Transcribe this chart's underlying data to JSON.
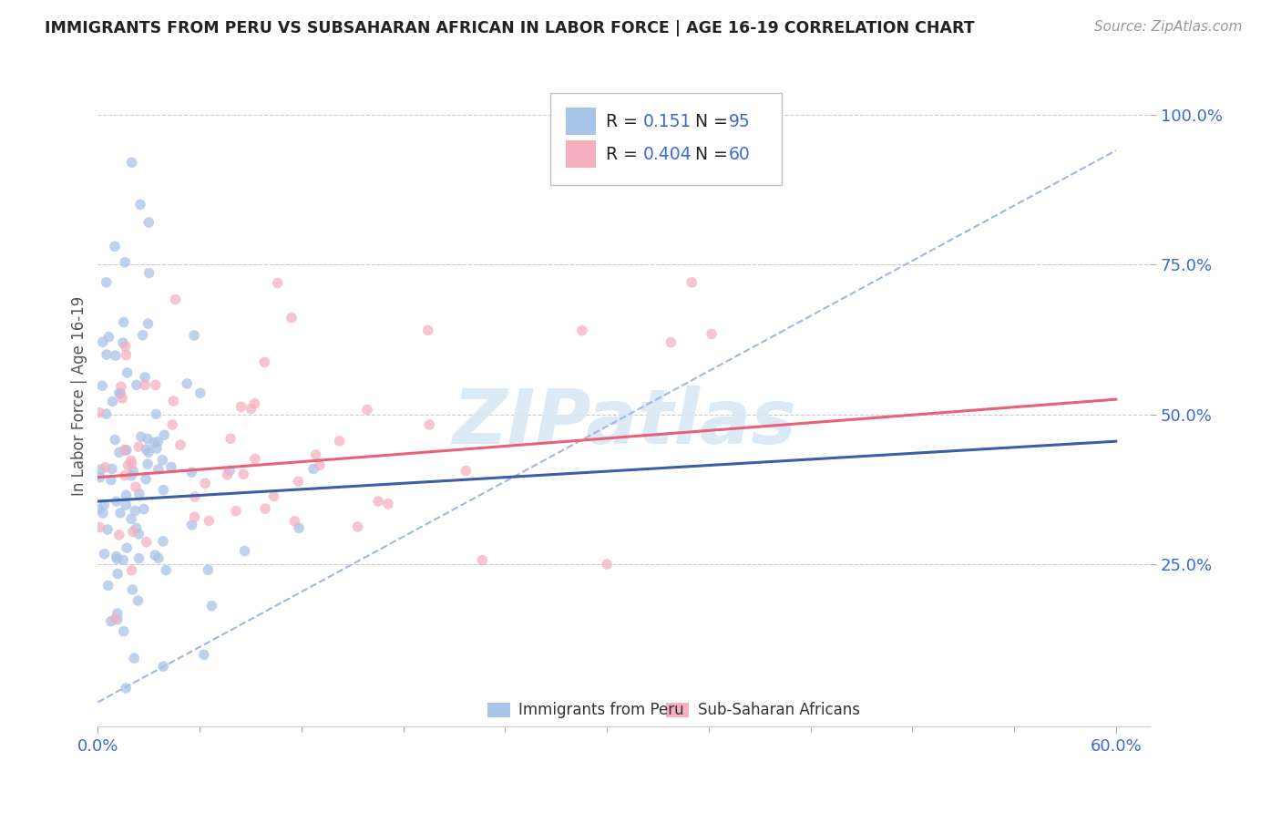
{
  "title": "IMMIGRANTS FROM PERU VS SUBSAHARAN AFRICAN IN LABOR FORCE | AGE 16-19 CORRELATION CHART",
  "source_text": "Source: ZipAtlas.com",
  "ylabel": "In Labor Force | Age 16-19",
  "xlim": [
    0.0,
    0.62
  ],
  "ylim": [
    -0.02,
    1.08
  ],
  "ytick_values": [
    0.25,
    0.5,
    0.75,
    1.0
  ],
  "ytick_labels": [
    "25.0%",
    "50.0%",
    "75.0%",
    "100.0%"
  ],
  "xtick_values": [
    0.0,
    0.6
  ],
  "xtick_labels": [
    "0.0%",
    "60.0%"
  ],
  "watermark": "ZIPatlas",
  "color_peru": "#a8c4e8",
  "color_africa": "#f5b0c0",
  "color_peru_line": "#3a5fa8",
  "color_africa_line": "#e8607a",
  "color_dashed": "#a0b8e0",
  "background_color": "#ffffff",
  "legend_r1_label": "R = ",
  "legend_r1_val": "0.151",
  "legend_n1_label": "N = ",
  "legend_n1_val": "95",
  "legend_r2_label": "R = ",
  "legend_r2_val": "0.404",
  "legend_n2_label": "N = ",
  "legend_n2_val": "60",
  "label_peru": "Immigrants from Peru",
  "label_africa": "Sub-Saharan Africans",
  "text_color_numbers": "#3a6ad4",
  "text_color_label": "#222222",
  "peru_line_x0": 0.0,
  "peru_line_y0": 0.355,
  "peru_line_x1": 0.6,
  "peru_line_y1": 0.455,
  "africa_line_x0": 0.0,
  "africa_line_y0": 0.395,
  "africa_line_x1": 0.6,
  "africa_line_y1": 0.525,
  "dashed_line_x0": 0.0,
  "dashed_line_y0": 0.02,
  "dashed_line_x1": 0.6,
  "dashed_line_y1": 0.94
}
